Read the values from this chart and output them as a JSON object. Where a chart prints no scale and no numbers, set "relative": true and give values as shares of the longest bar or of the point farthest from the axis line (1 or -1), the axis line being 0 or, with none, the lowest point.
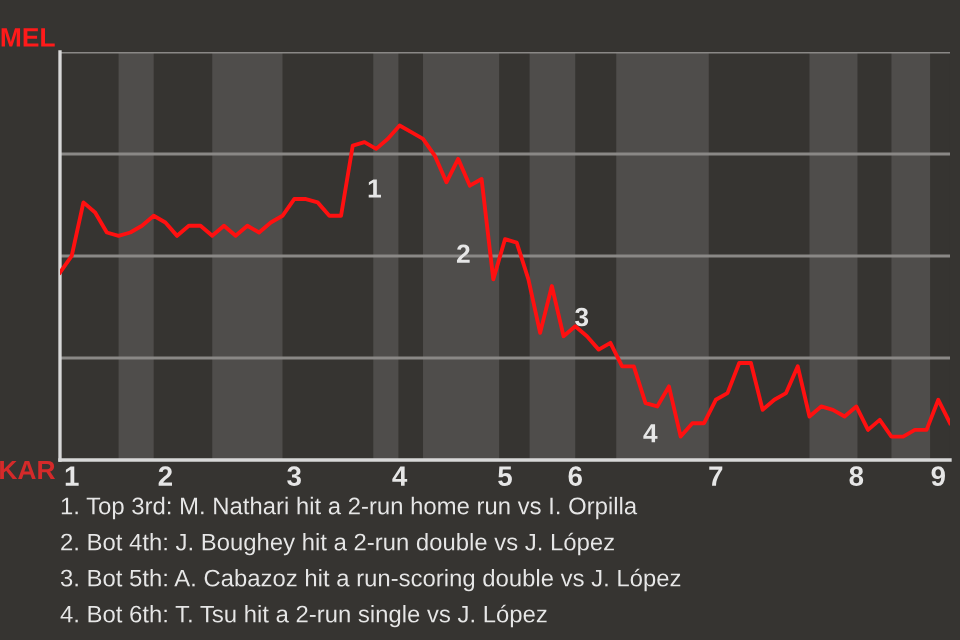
{
  "chart_data": {
    "type": "line",
    "relative": true,
    "categories": [
      null,
      "1",
      null,
      null,
      null,
      null,
      null,
      null,
      null,
      "2",
      null,
      null,
      null,
      null,
      null,
      null,
      null,
      null,
      null,
      null,
      "3",
      null,
      null,
      null,
      null,
      null,
      null,
      null,
      null,
      "4",
      null,
      null,
      null,
      null,
      null,
      null,
      null,
      null,
      "5",
      null,
      null,
      null,
      null,
      null,
      "6",
      null,
      null,
      null,
      null,
      null,
      null,
      null,
      null,
      null,
      null,
      null,
      "7",
      null,
      null,
      null,
      null,
      null,
      null,
      null,
      null,
      null,
      null,
      null,
      "8",
      null,
      null,
      null,
      null,
      null,
      null,
      "9",
      null
    ],
    "series": [
      {
        "color": "#ff1010",
        "values": [
          0.56,
          0.61,
          0.77,
          0.74,
          0.68,
          0.67,
          0.68,
          0.7,
          0.73,
          0.71,
          0.67,
          0.7,
          0.7,
          0.67,
          0.7,
          0.67,
          0.7,
          0.68,
          0.71,
          0.73,
          0.78,
          0.78,
          0.77,
          0.73,
          0.73,
          0.94,
          0.95,
          0.93,
          0.96,
          1,
          0.98,
          0.96,
          0.91,
          0.83,
          0.9,
          0.82,
          0.84,
          0.54,
          0.66,
          0.65,
          0.54,
          0.38,
          0.52,
          0.37,
          0.4,
          0.37,
          0.33,
          0.35,
          0.28,
          0.28,
          0.17,
          0.16,
          0.22,
          0.07,
          0.11,
          0.11,
          0.18,
          0.2,
          0.29,
          0.29,
          0.15,
          0.18,
          0.2,
          0.28,
          0.13,
          0.16,
          0.15,
          0.13,
          0.16,
          0.09,
          0.12,
          0.07,
          0.07,
          0.09,
          0.09,
          0.18,
          0.11
        ]
      }
    ],
    "grid": "y",
    "annotations": [
      "1",
      "2",
      "3",
      "4",
      "MEL",
      "KAR",
      "1. Top 3rd: M. Nathari hit a 2-run home run vs I. Orpilla",
      "2. Bot 4th: J. Boughey hit a 2-run double vs J. López",
      "3. Bot 5th: A. Cabazoz hit a run-scoring double vs J. López",
      "4. Bot 6th: T. Tsu hit a 2-run single vs J. López"
    ]
  }
}
